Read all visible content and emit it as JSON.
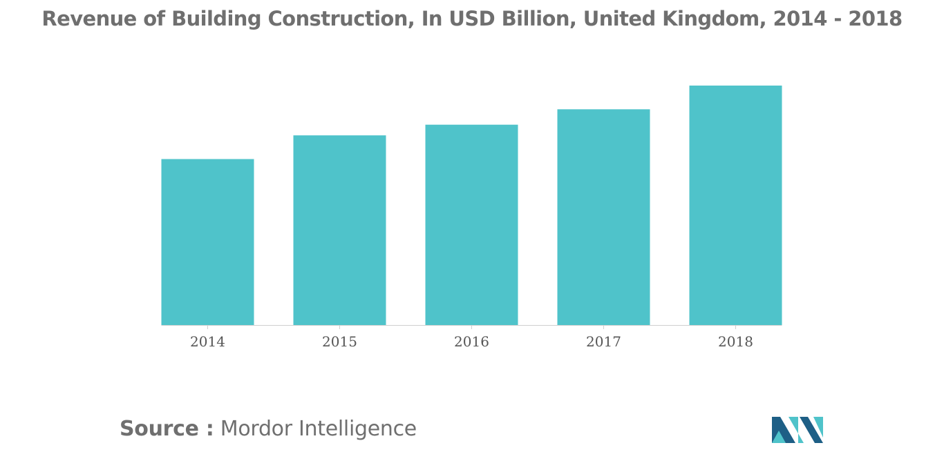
{
  "chart_data": {
    "type": "bar",
    "title": "Revenue of Building Construction, In USD Billion, United Kingdom, 2014 - 2018",
    "categories": [
      "2014",
      "2015",
      "2016",
      "2017",
      "2018"
    ],
    "values": [
      70,
      80,
      84.5,
      91,
      101
    ],
    "ylim": [
      0,
      101
    ],
    "xlabel": "",
    "ylabel": "",
    "grid": false,
    "bar_color": "#4fc3ca"
  },
  "source": {
    "label": "Source :",
    "text": "Mordor Intelligence"
  },
  "colors": {
    "title": "#6f6f6f",
    "logo_dark": "#1e5f86",
    "logo_light": "#4fc3ca"
  },
  "logo": {
    "icon": "mordor-intelligence-logo-icon"
  }
}
